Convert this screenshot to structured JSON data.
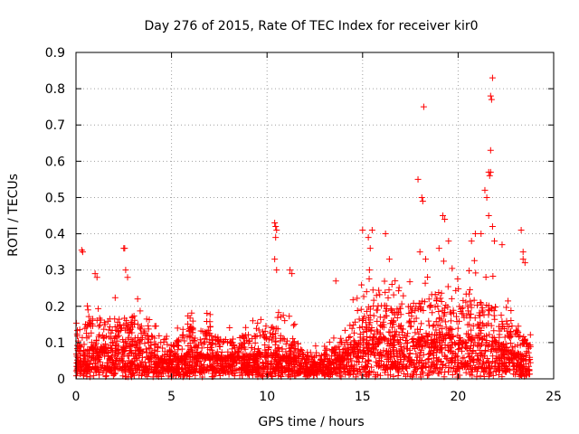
{
  "chart_data": {
    "type": "scatter",
    "title": "Day 276 of 2015, Rate Of TEC Index for receiver kir0",
    "xlabel": "GPS time / hours",
    "ylabel": "ROTI / TECUs",
    "xlim": [
      0,
      25
    ],
    "ylim": [
      0,
      0.9
    ],
    "x_ticks": [
      0,
      5,
      10,
      15,
      20,
      25
    ],
    "y_ticks": [
      0,
      0.1,
      0.2,
      0.3,
      0.4,
      0.5,
      0.6,
      0.7,
      0.8,
      0.9
    ],
    "x_tick_labels": [
      "0",
      "5",
      "10",
      "15",
      "20",
      "25"
    ],
    "y_tick_labels": [
      "0",
      "0.1",
      "0.2",
      "0.3",
      "0.4",
      "0.5",
      "0.6",
      "0.7",
      "0.8",
      "0.9"
    ],
    "grid": true,
    "marker": "+",
    "marker_color": "#ff0000",
    "x_data_range": [
      0,
      23.8
    ],
    "envelope": [
      {
        "x": 0.0,
        "base": 0.06,
        "spread": 0.14
      },
      {
        "x": 1.0,
        "base": 0.07,
        "spread": 0.17
      },
      {
        "x": 2.0,
        "base": 0.07,
        "spread": 0.16
      },
      {
        "x": 3.0,
        "base": 0.07,
        "spread": 0.17
      },
      {
        "x": 4.0,
        "base": 0.05,
        "spread": 0.11
      },
      {
        "x": 5.0,
        "base": 0.04,
        "spread": 0.09
      },
      {
        "x": 6.0,
        "base": 0.06,
        "spread": 0.14
      },
      {
        "x": 7.0,
        "base": 0.05,
        "spread": 0.13
      },
      {
        "x": 8.0,
        "base": 0.05,
        "spread": 0.1
      },
      {
        "x": 9.0,
        "base": 0.05,
        "spread": 0.12
      },
      {
        "x": 10.0,
        "base": 0.06,
        "spread": 0.15
      },
      {
        "x": 11.0,
        "base": 0.05,
        "spread": 0.14
      },
      {
        "x": 12.0,
        "base": 0.04,
        "spread": 0.07
      },
      {
        "x": 13.0,
        "base": 0.03,
        "spread": 0.06
      },
      {
        "x": 14.0,
        "base": 0.05,
        "spread": 0.1
      },
      {
        "x": 15.0,
        "base": 0.09,
        "spread": 0.22
      },
      {
        "x": 16.0,
        "base": 0.09,
        "spread": 0.2
      },
      {
        "x": 17.0,
        "base": 0.08,
        "spread": 0.19
      },
      {
        "x": 18.0,
        "base": 0.09,
        "spread": 0.21
      },
      {
        "x": 19.0,
        "base": 0.1,
        "spread": 0.24
      },
      {
        "x": 20.0,
        "base": 0.09,
        "spread": 0.2
      },
      {
        "x": 21.0,
        "base": 0.1,
        "spread": 0.24
      },
      {
        "x": 22.0,
        "base": 0.08,
        "spread": 0.2
      },
      {
        "x": 23.0,
        "base": 0.06,
        "spread": 0.13
      },
      {
        "x": 23.8,
        "base": 0.04,
        "spread": 0.1
      }
    ],
    "outliers": [
      {
        "x": 0.3,
        "y": 0.355
      },
      {
        "x": 0.35,
        "y": 0.35
      },
      {
        "x": 1.0,
        "y": 0.29
      },
      {
        "x": 1.1,
        "y": 0.28
      },
      {
        "x": 2.5,
        "y": 0.36
      },
      {
        "x": 2.55,
        "y": 0.36
      },
      {
        "x": 2.6,
        "y": 0.3
      },
      {
        "x": 2.7,
        "y": 0.28
      },
      {
        "x": 10.4,
        "y": 0.43
      },
      {
        "x": 10.45,
        "y": 0.42
      },
      {
        "x": 10.5,
        "y": 0.41
      },
      {
        "x": 10.45,
        "y": 0.39
      },
      {
        "x": 10.4,
        "y": 0.33
      },
      {
        "x": 10.5,
        "y": 0.3
      },
      {
        "x": 11.2,
        "y": 0.3
      },
      {
        "x": 11.3,
        "y": 0.29
      },
      {
        "x": 13.6,
        "y": 0.27
      },
      {
        "x": 15.0,
        "y": 0.41
      },
      {
        "x": 15.3,
        "y": 0.39
      },
      {
        "x": 15.5,
        "y": 0.41
      },
      {
        "x": 15.4,
        "y": 0.36
      },
      {
        "x": 16.2,
        "y": 0.4
      },
      {
        "x": 16.4,
        "y": 0.33
      },
      {
        "x": 17.9,
        "y": 0.55
      },
      {
        "x": 18.1,
        "y": 0.5
      },
      {
        "x": 18.15,
        "y": 0.49
      },
      {
        "x": 18.2,
        "y": 0.75
      },
      {
        "x": 18.0,
        "y": 0.35
      },
      {
        "x": 18.3,
        "y": 0.33
      },
      {
        "x": 19.2,
        "y": 0.45
      },
      {
        "x": 19.3,
        "y": 0.44
      },
      {
        "x": 19.5,
        "y": 0.38
      },
      {
        "x": 19.0,
        "y": 0.36
      },
      {
        "x": 20.7,
        "y": 0.38
      },
      {
        "x": 20.9,
        "y": 0.4
      },
      {
        "x": 21.2,
        "y": 0.4
      },
      {
        "x": 21.5,
        "y": 0.5
      },
      {
        "x": 21.4,
        "y": 0.52
      },
      {
        "x": 21.6,
        "y": 0.57
      },
      {
        "x": 21.65,
        "y": 0.56
      },
      {
        "x": 21.7,
        "y": 0.57
      },
      {
        "x": 21.7,
        "y": 0.63
      },
      {
        "x": 21.75,
        "y": 0.77
      },
      {
        "x": 21.7,
        "y": 0.78
      },
      {
        "x": 21.8,
        "y": 0.83
      },
      {
        "x": 21.6,
        "y": 0.45
      },
      {
        "x": 21.8,
        "y": 0.42
      },
      {
        "x": 21.9,
        "y": 0.38
      },
      {
        "x": 22.3,
        "y": 0.37
      },
      {
        "x": 23.3,
        "y": 0.41
      },
      {
        "x": 23.4,
        "y": 0.35
      },
      {
        "x": 23.4,
        "y": 0.33
      },
      {
        "x": 23.5,
        "y": 0.32
      }
    ]
  }
}
